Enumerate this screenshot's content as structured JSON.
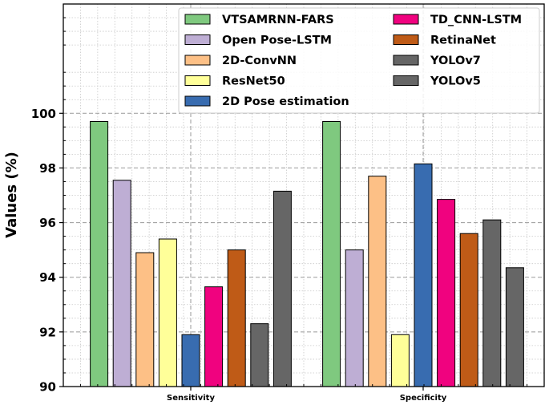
{
  "chart_data": {
    "type": "bar",
    "title": "",
    "xlabel": "",
    "ylabel": "Values (%)",
    "ylim": [
      90,
      104
    ],
    "yticks": [
      90,
      92,
      94,
      96,
      98,
      100
    ],
    "grid": true,
    "legend_position": "top-right",
    "categories": [
      "Sensitivity",
      "Specificity"
    ],
    "series": [
      {
        "name": "VTSAMRNN-FARS",
        "color": "#7fc97f",
        "values": [
          99.7,
          99.7
        ]
      },
      {
        "name": "Open Pose-LSTM",
        "color": "#beaed4",
        "values": [
          97.55,
          95.0
        ]
      },
      {
        "name": "2D-ConvNN",
        "color": "#fdc086",
        "values": [
          94.9,
          97.7
        ]
      },
      {
        "name": "ResNet50",
        "color": "#ffff99",
        "values": [
          95.4,
          91.9
        ]
      },
      {
        "name": "2D Pose estimation",
        "color": "#386cb0",
        "values": [
          91.9,
          98.15
        ]
      },
      {
        "name": "TD_CNN-LSTM",
        "color": "#f0027f",
        "values": [
          93.65,
          96.85
        ]
      },
      {
        "name": "RetinaNet",
        "color": "#bf5b17",
        "values": [
          95.0,
          95.6
        ]
      },
      {
        "name": "YOLOv7",
        "color": "#666666",
        "values": [
          92.3,
          96.1
        ]
      },
      {
        "name": "YOLOv5",
        "color": "#666666",
        "values": [
          97.15,
          94.35
        ]
      }
    ]
  }
}
